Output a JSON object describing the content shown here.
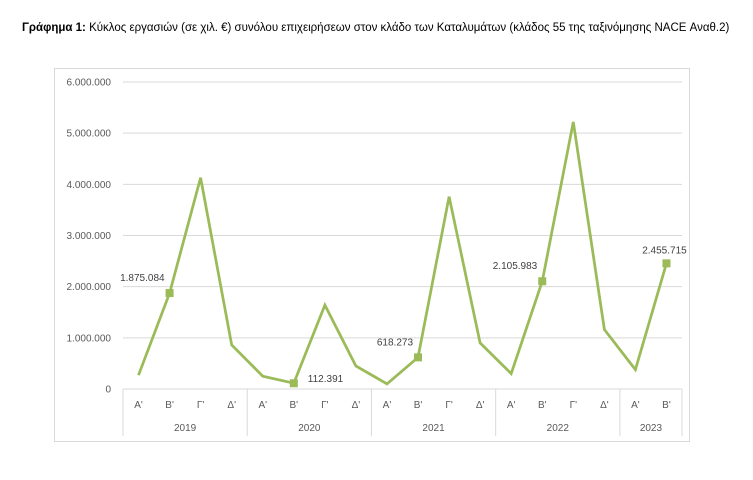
{
  "caption": {
    "bold": "Γράφημα 1:",
    "text": " Κύκλος εργασιών (σε χιλ. €) συνόλου επιχειρήσεων στον κλάδο των Καταλυμάτων (κλάδος 55 της ταξινόμησης NACE Αναθ.2)"
  },
  "chart_data": {
    "type": "line",
    "title": "",
    "xlabel": "",
    "ylabel": "",
    "ylim": [
      0,
      6000000
    ],
    "yticks": [
      0,
      1000000,
      2000000,
      3000000,
      4000000,
      5000000,
      6000000
    ],
    "ytick_labels": [
      "0",
      "1.000.000",
      "2.000.000",
      "3.000.000",
      "4.000.000",
      "5.000.000",
      "6.000.000"
    ],
    "grid": true,
    "color": "#9bbb59",
    "categories": [
      "Α'",
      "Β'",
      "Γ'",
      "Δ'",
      "Α'",
      "Β'",
      "Γ'",
      "Δ'",
      "Α'",
      "Β'",
      "Γ'",
      "Δ'",
      "Α'",
      "Β'",
      "Γ'",
      "Δ'",
      "Α'",
      "Β'"
    ],
    "groups": [
      {
        "label": "2019",
        "count": 4
      },
      {
        "label": "2020",
        "count": 4
      },
      {
        "label": "2021",
        "count": 4
      },
      {
        "label": "2022",
        "count": 4
      },
      {
        "label": "2023",
        "count": 2
      }
    ],
    "series": [
      {
        "values": [
          270000,
          1875084,
          4130000,
          860000,
          250000,
          112391,
          1640000,
          450000,
          100000,
          618273,
          3760000,
          900000,
          300000,
          2105983,
          5220000,
          1160000,
          380000,
          2455715
        ]
      }
    ],
    "markers": [
      {
        "index": 1,
        "label": "1.875.084",
        "side": "left"
      },
      {
        "index": 5,
        "label": "112.391",
        "side": "right"
      },
      {
        "index": 9,
        "label": "618.273",
        "side": "left"
      },
      {
        "index": 13,
        "label": "2.105.983",
        "side": "left"
      },
      {
        "index": 17,
        "label": "2.455.715",
        "side": "above"
      }
    ]
  }
}
